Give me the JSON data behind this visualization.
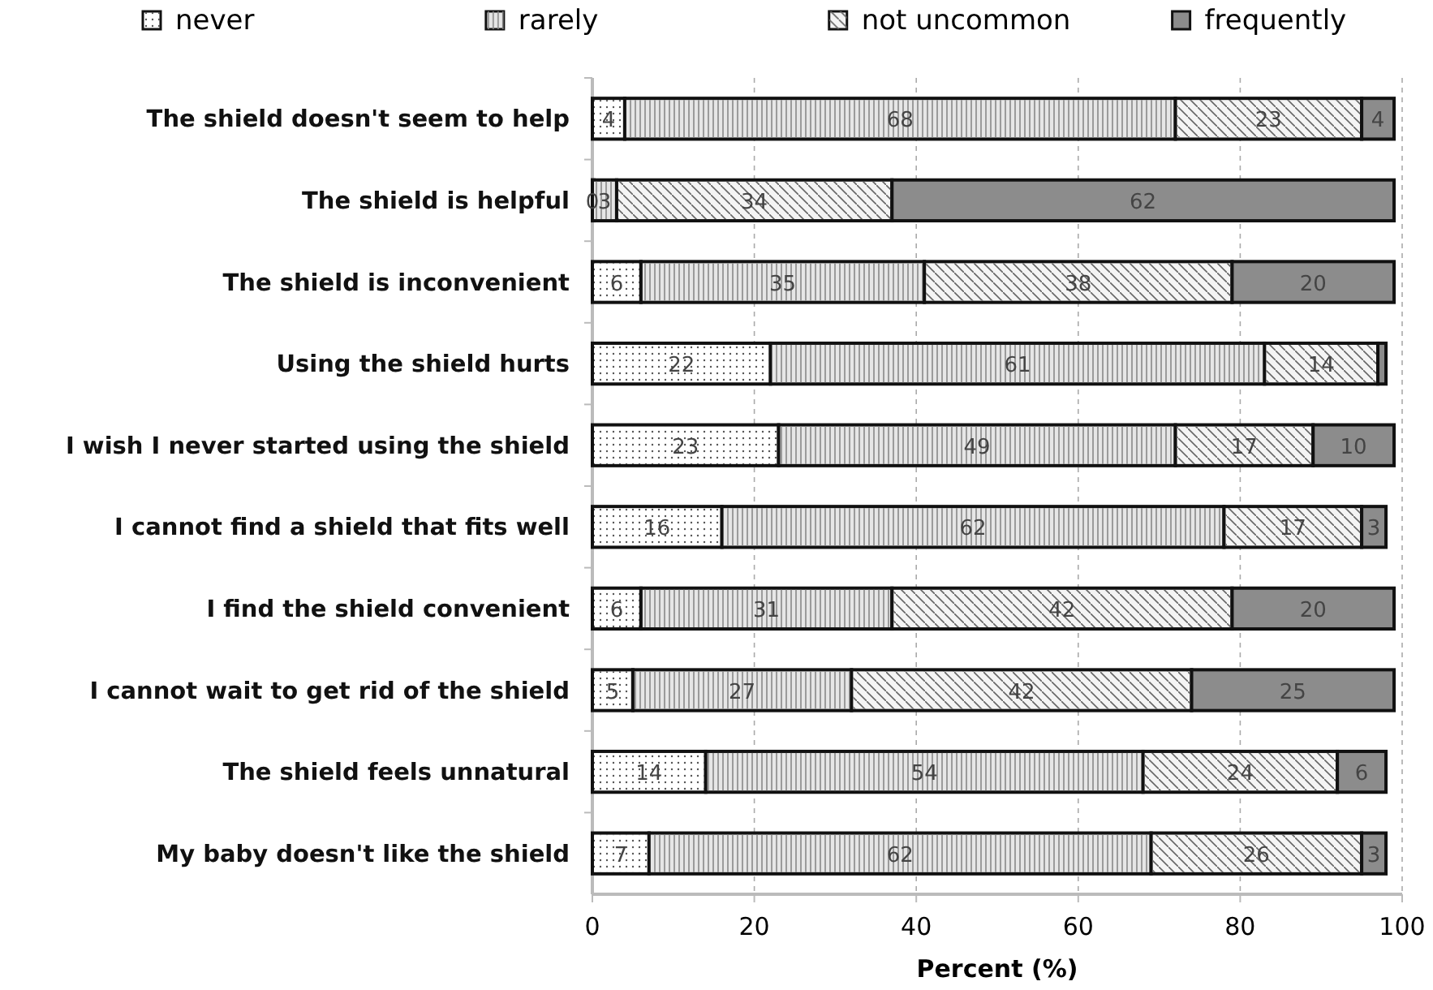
{
  "chart_data": {
    "type": "bar",
    "orientation": "horizontal",
    "stacked": true,
    "xlabel": "Percent (%)",
    "xlim": [
      0,
      100
    ],
    "xticks": [
      0,
      20,
      40,
      60,
      80,
      100
    ],
    "grid": "x",
    "legend": "top",
    "categories": [
      "The shield doesn't seem to help",
      "The shield is helpful",
      "The shield is inconvenient",
      "Using the shield hurts",
      "I wish I never started using the shield",
      "I cannot find a shield that fits well",
      "I find the shield convenient",
      "I cannot wait to get rid of the shield",
      "The shield feels unnatural",
      "My baby doesn't like the shield"
    ],
    "series": [
      {
        "name": "never",
        "color": "#ffffff",
        "values": [
          4,
          0,
          6,
          22,
          23,
          16,
          6,
          5,
          14,
          7
        ],
        "value_labels": [
          "4",
          "0",
          "6",
          "22",
          "23",
          "16",
          "6",
          "5",
          "14",
          "7"
        ]
      },
      {
        "name": "rarely",
        "color": "#e6e6e6",
        "values": [
          68,
          3,
          35,
          61,
          49,
          62,
          31,
          27,
          54,
          62
        ],
        "value_labels": [
          "68",
          "3",
          "35",
          "61",
          "49",
          "62",
          "31",
          "27",
          "54",
          "62"
        ]
      },
      {
        "name": "not uncommon",
        "color": "#f4f4f4",
        "values": [
          23,
          34,
          38,
          14,
          17,
          17,
          42,
          42,
          24,
          26
        ],
        "value_labels": [
          "23",
          "34",
          "38",
          "14",
          "17",
          "17",
          "42",
          "42",
          "24",
          "26"
        ]
      },
      {
        "name": "frequently",
        "color": "#8c8c8c",
        "values": [
          4,
          62,
          20,
          1,
          10,
          3,
          20,
          25,
          6,
          3
        ],
        "value_labels": [
          "4",
          "62",
          "20",
          null,
          "10",
          "3",
          "20",
          "25",
          "6",
          "3"
        ]
      }
    ]
  }
}
